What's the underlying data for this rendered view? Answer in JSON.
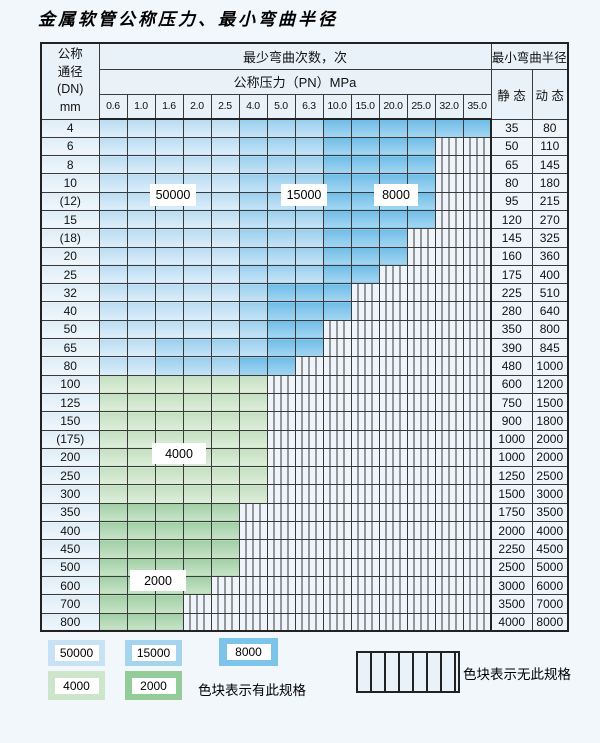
{
  "title": "金属软管公称压力、最小弯曲半径",
  "colors": {
    "blue_50000": "#c7e2f4",
    "blue_15000": "#a6d4ef",
    "blue_8000": "#7cc4e9",
    "green_4000": "#cde5ca",
    "green_2000": "#94cc98",
    "no_spec_hatch_bg": "#eef4f9",
    "grid_line": "#3a3a3a"
  },
  "table": {
    "corner_header": [
      "公称",
      "通径",
      "(DN)",
      "mm"
    ],
    "bend_times_header": "最少弯曲次数，次",
    "pressure_header": "公称压力（PN）MPa",
    "radius_header": "最小弯曲半径",
    "static_header": "静 态",
    "dynamic_header": "动 态",
    "pressure_columns": [
      "0.6",
      "1.0",
      "1.6",
      "2.0",
      "2.5",
      "4.0",
      "5.0",
      "6.3",
      "10.0",
      "15.0",
      "20.0",
      "25.0",
      "32.0",
      "35.0"
    ],
    "cell_legend": {
      "b1": "50000",
      "b2": "15000",
      "b3": "8000",
      "g1": "4000",
      "g2": "2000",
      "x": "no-spec"
    },
    "rows": [
      {
        "dn": "4",
        "cells": [
          "b1",
          "b1",
          "b1",
          "b1",
          "b1",
          "b2",
          "b2",
          "b2",
          "b3",
          "b3",
          "b3",
          "b3",
          "b3",
          "b3"
        ],
        "static": "35",
        "dynamic": "80"
      },
      {
        "dn": "6",
        "cells": [
          "b1",
          "b1",
          "b1",
          "b1",
          "b1",
          "b2",
          "b2",
          "b2",
          "b3",
          "b3",
          "b3",
          "b3",
          "x",
          "x"
        ],
        "static": "50",
        "dynamic": "110"
      },
      {
        "dn": "8",
        "cells": [
          "b1",
          "b1",
          "b1",
          "b1",
          "b1",
          "b2",
          "b2",
          "b2",
          "b3",
          "b3",
          "b3",
          "b3",
          "x",
          "x"
        ],
        "static": "65",
        "dynamic": "145"
      },
      {
        "dn": "10",
        "cells": [
          "b1",
          "b1",
          "b1",
          "b1",
          "b1",
          "b2",
          "b2",
          "b2",
          "b3",
          "b3",
          "b3",
          "b3",
          "x",
          "x"
        ],
        "static": "80",
        "dynamic": "180"
      },
      {
        "dn": "(12)",
        "cells": [
          "b1",
          "b1",
          "b1",
          "b1",
          "b1",
          "b2",
          "b2",
          "b2",
          "b3",
          "b3",
          "b3",
          "b3",
          "x",
          "x"
        ],
        "static": "95",
        "dynamic": "215"
      },
      {
        "dn": "15",
        "cells": [
          "b1",
          "b1",
          "b1",
          "b1",
          "b1",
          "b2",
          "b2",
          "b2",
          "b3",
          "b3",
          "b3",
          "b3",
          "x",
          "x"
        ],
        "static": "120",
        "dynamic": "270"
      },
      {
        "dn": "(18)",
        "cells": [
          "b1",
          "b1",
          "b1",
          "b1",
          "b1",
          "b2",
          "b2",
          "b2",
          "b3",
          "b3",
          "b3",
          "x",
          "x",
          "x"
        ],
        "static": "145",
        "dynamic": "325"
      },
      {
        "dn": "20",
        "cells": [
          "b1",
          "b1",
          "b1",
          "b1",
          "b1",
          "b2",
          "b2",
          "b2",
          "b3",
          "b3",
          "b3",
          "x",
          "x",
          "x"
        ],
        "static": "160",
        "dynamic": "360"
      },
      {
        "dn": "25",
        "cells": [
          "b1",
          "b1",
          "b1",
          "b1",
          "b1",
          "b2",
          "b2",
          "b2",
          "b3",
          "b3",
          "x",
          "x",
          "x",
          "x"
        ],
        "static": "175",
        "dynamic": "400"
      },
      {
        "dn": "32",
        "cells": [
          "b1",
          "b1",
          "b1",
          "b1",
          "b1",
          "b2",
          "b3",
          "b3",
          "b3",
          "x",
          "x",
          "x",
          "x",
          "x"
        ],
        "static": "225",
        "dynamic": "510"
      },
      {
        "dn": "40",
        "cells": [
          "b1",
          "b1",
          "b1",
          "b1",
          "b1",
          "b2",
          "b3",
          "b3",
          "b3",
          "x",
          "x",
          "x",
          "x",
          "x"
        ],
        "static": "280",
        "dynamic": "640"
      },
      {
        "dn": "50",
        "cells": [
          "b1",
          "b1",
          "b1",
          "b1",
          "b1",
          "b2",
          "b3",
          "b3",
          "x",
          "x",
          "x",
          "x",
          "x",
          "x"
        ],
        "static": "350",
        "dynamic": "800"
      },
      {
        "dn": "65",
        "cells": [
          "b1",
          "b1",
          "b2",
          "b2",
          "b2",
          "b2",
          "b3",
          "b3",
          "x",
          "x",
          "x",
          "x",
          "x",
          "x"
        ],
        "static": "390",
        "dynamic": "845"
      },
      {
        "dn": "80",
        "cells": [
          "b1",
          "b1",
          "b2",
          "b2",
          "b2",
          "b3",
          "b3",
          "x",
          "x",
          "x",
          "x",
          "x",
          "x",
          "x"
        ],
        "static": "480",
        "dynamic": "1000"
      },
      {
        "dn": "100",
        "cells": [
          "g1",
          "g1",
          "g1",
          "g1",
          "g1",
          "g1",
          "x",
          "x",
          "x",
          "x",
          "x",
          "x",
          "x",
          "x"
        ],
        "static": "600",
        "dynamic": "1200"
      },
      {
        "dn": "125",
        "cells": [
          "g1",
          "g1",
          "g1",
          "g1",
          "g1",
          "g1",
          "x",
          "x",
          "x",
          "x",
          "x",
          "x",
          "x",
          "x"
        ],
        "static": "750",
        "dynamic": "1500"
      },
      {
        "dn": "150",
        "cells": [
          "g1",
          "g1",
          "g1",
          "g1",
          "g1",
          "g1",
          "x",
          "x",
          "x",
          "x",
          "x",
          "x",
          "x",
          "x"
        ],
        "static": "900",
        "dynamic": "1800"
      },
      {
        "dn": "(175)",
        "cells": [
          "g1",
          "g1",
          "g1",
          "g1",
          "g1",
          "g1",
          "x",
          "x",
          "x",
          "x",
          "x",
          "x",
          "x",
          "x"
        ],
        "static": "1000",
        "dynamic": "2000"
      },
      {
        "dn": "200",
        "cells": [
          "g1",
          "g1",
          "g1",
          "g1",
          "g1",
          "g1",
          "x",
          "x",
          "x",
          "x",
          "x",
          "x",
          "x",
          "x"
        ],
        "static": "1000",
        "dynamic": "2000"
      },
      {
        "dn": "250",
        "cells": [
          "g1",
          "g1",
          "g1",
          "g1",
          "g1",
          "g1",
          "x",
          "x",
          "x",
          "x",
          "x",
          "x",
          "x",
          "x"
        ],
        "static": "1250",
        "dynamic": "2500"
      },
      {
        "dn": "300",
        "cells": [
          "g1",
          "g1",
          "g1",
          "g1",
          "g1",
          "g1",
          "x",
          "x",
          "x",
          "x",
          "x",
          "x",
          "x",
          "x"
        ],
        "static": "1500",
        "dynamic": "3000"
      },
      {
        "dn": "350",
        "cells": [
          "g2",
          "g2",
          "g2",
          "g2",
          "g2",
          "x",
          "x",
          "x",
          "x",
          "x",
          "x",
          "x",
          "x",
          "x"
        ],
        "static": "1750",
        "dynamic": "3500"
      },
      {
        "dn": "400",
        "cells": [
          "g2",
          "g2",
          "g2",
          "g2",
          "g2",
          "x",
          "x",
          "x",
          "x",
          "x",
          "x",
          "x",
          "x",
          "x"
        ],
        "static": "2000",
        "dynamic": "4000"
      },
      {
        "dn": "450",
        "cells": [
          "g2",
          "g2",
          "g2",
          "g2",
          "g2",
          "x",
          "x",
          "x",
          "x",
          "x",
          "x",
          "x",
          "x",
          "x"
        ],
        "static": "2250",
        "dynamic": "4500"
      },
      {
        "dn": "500",
        "cells": [
          "g2",
          "g2",
          "g2",
          "g2",
          "g2",
          "x",
          "x",
          "x",
          "x",
          "x",
          "x",
          "x",
          "x",
          "x"
        ],
        "static": "2500",
        "dynamic": "5000"
      },
      {
        "dn": "600",
        "cells": [
          "g2",
          "g2",
          "g2",
          "g2",
          "x",
          "x",
          "x",
          "x",
          "x",
          "x",
          "x",
          "x",
          "x",
          "x"
        ],
        "static": "3000",
        "dynamic": "6000"
      },
      {
        "dn": "700",
        "cells": [
          "g2",
          "g2",
          "g2",
          "x",
          "x",
          "x",
          "x",
          "x",
          "x",
          "x",
          "x",
          "x",
          "x",
          "x"
        ],
        "static": "3500",
        "dynamic": "7000"
      },
      {
        "dn": "800",
        "cells": [
          "g2",
          "g2",
          "g2",
          "x",
          "x",
          "x",
          "x",
          "x",
          "x",
          "x",
          "x",
          "x",
          "x",
          "x"
        ],
        "static": "4000",
        "dynamic": "8000"
      }
    ]
  },
  "region_labels": [
    {
      "text": "50000"
    },
    {
      "text": "15000"
    },
    {
      "text": "8000"
    },
    {
      "text": "4000"
    },
    {
      "text": "2000"
    }
  ],
  "legend": {
    "swatches": [
      {
        "label": "50000"
      },
      {
        "label": "15000"
      },
      {
        "label": "8000"
      },
      {
        "label": "4000"
      },
      {
        "label": "2000"
      }
    ],
    "has_spec_text": "色块表示有此规格",
    "no_spec_text": "色块表示无此规格"
  }
}
